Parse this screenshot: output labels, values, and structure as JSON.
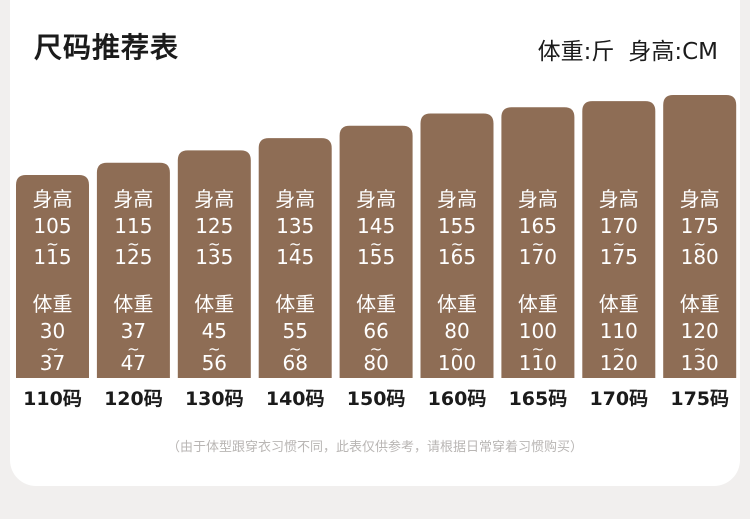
{
  "header": {
    "title": "尺码推荐表",
    "unit_weight": "体重:斤",
    "unit_height": "身高:CM"
  },
  "footnote": "（由于体型跟穿衣习惯不同，此表仅供参考，请根据日常穿着习惯购买）",
  "colors": {
    "bar": "#8e6d55",
    "bar_text": "#ffffff",
    "label": "#1b1b1b",
    "card": "#ffffff",
    "background": "#f1efee"
  },
  "chart_data": {
    "type": "bar",
    "title": "尺码推荐表",
    "height_label": "身高",
    "weight_label": "体重",
    "range_separator": "~",
    "categories": [
      "110码",
      "120码",
      "130码",
      "140码",
      "150码",
      "160码",
      "165码",
      "170码",
      "175码"
    ],
    "height_cm": [
      [
        105,
        115
      ],
      [
        115,
        125
      ],
      [
        125,
        135
      ],
      [
        135,
        145
      ],
      [
        145,
        155
      ],
      [
        155,
        165
      ],
      [
        165,
        170
      ],
      [
        170,
        175
      ],
      [
        175,
        180
      ]
    ],
    "weight_jin": [
      [
        30,
        37
      ],
      [
        37,
        47
      ],
      [
        45,
        56
      ],
      [
        55,
        68
      ],
      [
        66,
        80
      ],
      [
        80,
        100
      ],
      [
        100,
        110
      ],
      [
        110,
        120
      ],
      [
        120,
        130
      ]
    ]
  }
}
